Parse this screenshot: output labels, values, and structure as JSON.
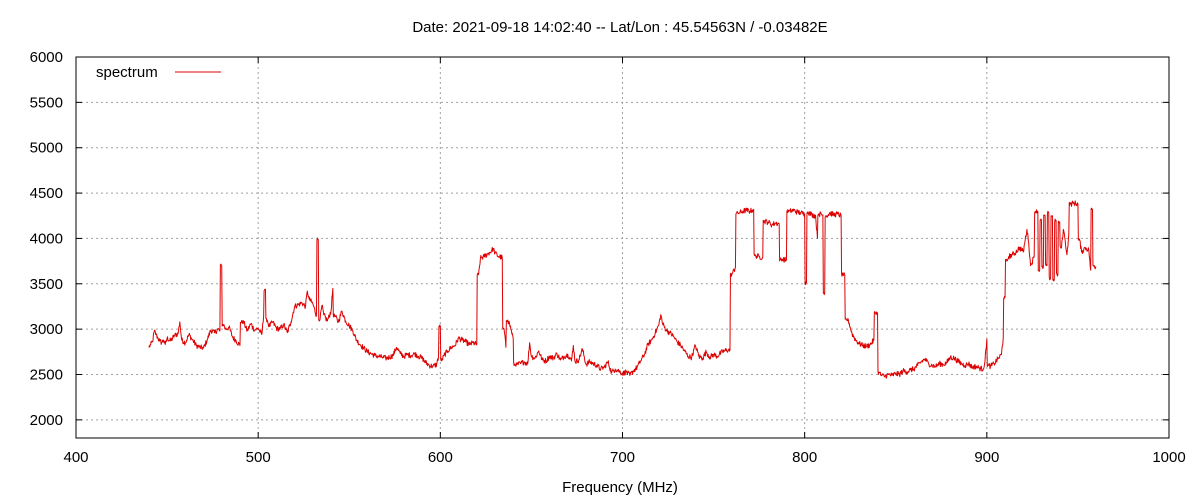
{
  "chart_data": {
    "type": "line",
    "title": "Date: 2021-09-18 14:02:40  --  Lat/Lon : 45.54563N / -0.03482E",
    "xlabel": "Frequency (MHz)",
    "ylabel": "",
    "xlim": [
      400,
      1000
    ],
    "ylim": [
      1800,
      6000
    ],
    "xticks": [
      400,
      500,
      600,
      700,
      800,
      900,
      1000
    ],
    "yticks": [
      2000,
      2500,
      3000,
      3500,
      4000,
      4500,
      5000,
      5500,
      6000
    ],
    "grid": true,
    "legend_position": "top-left",
    "colors": {
      "spectrum": "#dd0000"
    },
    "series": [
      {
        "name": "spectrum",
        "points": [
          [
            440,
            2800
          ],
          [
            441,
            2830
          ],
          [
            442,
            2860
          ],
          [
            443,
            2980
          ],
          [
            444,
            2940
          ],
          [
            445,
            2900
          ],
          [
            446,
            2870
          ],
          [
            447,
            2850
          ],
          [
            448,
            2880
          ],
          [
            449,
            2830
          ],
          [
            450,
            2900
          ],
          [
            452,
            2870
          ],
          [
            454,
            2930
          ],
          [
            456,
            2950
          ],
          [
            457,
            3080
          ],
          [
            458,
            2880
          ],
          [
            460,
            2850
          ],
          [
            462,
            2940
          ],
          [
            464,
            2880
          ],
          [
            466,
            2820
          ],
          [
            468,
            2800
          ],
          [
            470,
            2790
          ],
          [
            472,
            2880
          ],
          [
            474,
            2990
          ],
          [
            476,
            2960
          ],
          [
            478,
            3000
          ],
          [
            479,
            2980
          ],
          [
            480,
            3700
          ],
          [
            481,
            3050
          ],
          [
            482,
            3000
          ],
          [
            484,
            3020
          ],
          [
            486,
            2910
          ],
          [
            488,
            2870
          ],
          [
            490,
            2820
          ],
          [
            492,
            3080
          ],
          [
            494,
            2980
          ],
          [
            496,
            3060
          ],
          [
            498,
            2990
          ],
          [
            500,
            3010
          ],
          [
            502,
            2940
          ],
          [
            503,
            3140
          ],
          [
            504,
            3440
          ],
          [
            505,
            3100
          ],
          [
            506,
            3030
          ],
          [
            508,
            3080
          ],
          [
            510,
            3010
          ],
          [
            512,
            3000
          ],
          [
            514,
            3050
          ],
          [
            516,
            2960
          ],
          [
            518,
            3080
          ],
          [
            520,
            3250
          ],
          [
            522,
            3270
          ],
          [
            524,
            3290
          ],
          [
            526,
            3250
          ],
          [
            527,
            3420
          ],
          [
            528,
            3330
          ],
          [
            530,
            3280
          ],
          [
            532,
            3150
          ],
          [
            533,
            3990
          ],
          [
            534,
            3110
          ],
          [
            535,
            3260
          ],
          [
            536,
            3160
          ],
          [
            538,
            3090
          ],
          [
            540,
            3200
          ],
          [
            541,
            3450
          ],
          [
            542,
            3150
          ],
          [
            544,
            3080
          ],
          [
            546,
            3200
          ],
          [
            548,
            3090
          ],
          [
            550,
            3040
          ],
          [
            552,
            2980
          ],
          [
            554,
            2880
          ],
          [
            556,
            2830
          ],
          [
            558,
            2790
          ],
          [
            560,
            2750
          ],
          [
            562,
            2730
          ],
          [
            564,
            2710
          ],
          [
            566,
            2700
          ],
          [
            568,
            2690
          ],
          [
            570,
            2680
          ],
          [
            572,
            2690
          ],
          [
            574,
            2710
          ],
          [
            576,
            2800
          ],
          [
            578,
            2730
          ],
          [
            580,
            2700
          ],
          [
            582,
            2720
          ],
          [
            584,
            2710
          ],
          [
            586,
            2730
          ],
          [
            588,
            2700
          ],
          [
            590,
            2680
          ],
          [
            592,
            2630
          ],
          [
            594,
            2600
          ],
          [
            596,
            2590
          ],
          [
            598,
            2610
          ],
          [
            599,
            2700
          ],
          [
            600,
            3030
          ],
          [
            601,
            2660
          ],
          [
            602,
            2710
          ],
          [
            604,
            2760
          ],
          [
            606,
            2800
          ],
          [
            608,
            2820
          ],
          [
            610,
            2900
          ],
          [
            612,
            2880
          ],
          [
            614,
            2860
          ],
          [
            616,
            2830
          ],
          [
            618,
            2850
          ],
          [
            620,
            2830
          ],
          [
            621,
            3600
          ],
          [
            622,
            3780
          ],
          [
            624,
            3800
          ],
          [
            626,
            3830
          ],
          [
            628,
            3860
          ],
          [
            629,
            3890
          ],
          [
            630,
            3840
          ],
          [
            632,
            3800
          ],
          [
            634,
            3790
          ],
          [
            635,
            3000
          ],
          [
            636,
            2800
          ],
          [
            637,
            3100
          ],
          [
            638,
            3060
          ],
          [
            640,
            2900
          ],
          [
            642,
            2610
          ],
          [
            644,
            2620
          ],
          [
            646,
            2640
          ],
          [
            648,
            2620
          ],
          [
            649,
            2850
          ],
          [
            650,
            2700
          ],
          [
            652,
            2680
          ],
          [
            654,
            2760
          ],
          [
            656,
            2660
          ],
          [
            658,
            2650
          ],
          [
            660,
            2700
          ],
          [
            662,
            2680
          ],
          [
            664,
            2730
          ],
          [
            666,
            2660
          ],
          [
            668,
            2700
          ],
          [
            670,
            2720
          ],
          [
            672,
            2650
          ],
          [
            673,
            2820
          ],
          [
            674,
            2640
          ],
          [
            676,
            2660
          ],
          [
            678,
            2780
          ],
          [
            680,
            2610
          ],
          [
            682,
            2640
          ],
          [
            684,
            2620
          ],
          [
            686,
            2600
          ],
          [
            688,
            2560
          ],
          [
            690,
            2580
          ],
          [
            692,
            2640
          ],
          [
            694,
            2520
          ],
          [
            696,
            2560
          ],
          [
            698,
            2540
          ],
          [
            700,
            2510
          ],
          [
            702,
            2530
          ],
          [
            704,
            2490
          ],
          [
            706,
            2540
          ],
          [
            708,
            2580
          ],
          [
            710,
            2650
          ],
          [
            712,
            2720
          ],
          [
            714,
            2830
          ],
          [
            716,
            2880
          ],
          [
            718,
            2960
          ],
          [
            720,
            3050
          ],
          [
            721,
            3160
          ],
          [
            722,
            3060
          ],
          [
            724,
            2990
          ],
          [
            726,
            2960
          ],
          [
            728,
            2920
          ],
          [
            730,
            2860
          ],
          [
            732,
            2820
          ],
          [
            734,
            2760
          ],
          [
            736,
            2700
          ],
          [
            738,
            2690
          ],
          [
            740,
            2820
          ],
          [
            742,
            2700
          ],
          [
            744,
            2680
          ],
          [
            746,
            2750
          ],
          [
            748,
            2690
          ],
          [
            750,
            2720
          ],
          [
            752,
            2700
          ],
          [
            754,
            2740
          ],
          [
            756,
            2760
          ],
          [
            758,
            2770
          ],
          [
            759,
            2770
          ],
          [
            760,
            3600
          ],
          [
            762,
            3680
          ],
          [
            764,
            4280
          ],
          [
            766,
            4300
          ],
          [
            768,
            4310
          ],
          [
            770,
            4300
          ],
          [
            772,
            4320
          ],
          [
            773,
            3810
          ],
          [
            775,
            3800
          ],
          [
            777,
            3790
          ],
          [
            778,
            4190
          ],
          [
            780,
            4180
          ],
          [
            782,
            4150
          ],
          [
            784,
            4170
          ],
          [
            786,
            4160
          ],
          [
            788,
            3770
          ],
          [
            790,
            3760
          ],
          [
            792,
            4300
          ],
          [
            794,
            4310
          ],
          [
            796,
            4290
          ],
          [
            798,
            4280
          ],
          [
            800,
            4270
          ],
          [
            801,
            3510
          ],
          [
            802,
            4290
          ],
          [
            804,
            4260
          ],
          [
            806,
            4250
          ],
          [
            807,
            4000
          ],
          [
            808,
            4270
          ],
          [
            810,
            4260
          ],
          [
            811,
            3400
          ],
          [
            812,
            4250
          ],
          [
            814,
            4280
          ],
          [
            816,
            4260
          ],
          [
            818,
            4270
          ],
          [
            820,
            4250
          ],
          [
            822,
            3600
          ],
          [
            824,
            3100
          ],
          [
            826,
            2950
          ],
          [
            828,
            2880
          ],
          [
            830,
            2840
          ],
          [
            832,
            2820
          ],
          [
            834,
            2810
          ],
          [
            836,
            2830
          ],
          [
            838,
            2880
          ],
          [
            840,
            3180
          ],
          [
            841,
            2520
          ],
          [
            842,
            2490
          ],
          [
            844,
            2480
          ],
          [
            846,
            2500
          ],
          [
            848,
            2490
          ],
          [
            850,
            2510
          ],
          [
            852,
            2500
          ],
          [
            854,
            2540
          ],
          [
            856,
            2530
          ],
          [
            858,
            2550
          ],
          [
            860,
            2560
          ],
          [
            862,
            2600
          ],
          [
            864,
            2640
          ],
          [
            866,
            2670
          ],
          [
            868,
            2620
          ],
          [
            870,
            2600
          ],
          [
            872,
            2590
          ],
          [
            874,
            2620
          ],
          [
            876,
            2610
          ],
          [
            878,
            2630
          ],
          [
            880,
            2690
          ],
          [
            882,
            2680
          ],
          [
            884,
            2650
          ],
          [
            886,
            2620
          ],
          [
            888,
            2600
          ],
          [
            890,
            2620
          ],
          [
            892,
            2580
          ],
          [
            894,
            2590
          ],
          [
            896,
            2570
          ],
          [
            898,
            2560
          ],
          [
            899,
            2650
          ],
          [
            900,
            2890
          ],
          [
            901,
            2600
          ],
          [
            902,
            2590
          ],
          [
            904,
            2620
          ],
          [
            906,
            2670
          ],
          [
            908,
            2720
          ],
          [
            909,
            2900
          ],
          [
            910,
            3350
          ],
          [
            911,
            3750
          ],
          [
            912,
            3800
          ],
          [
            914,
            3820
          ],
          [
            916,
            3850
          ],
          [
            918,
            3900
          ],
          [
            920,
            3850
          ],
          [
            922,
            4100
          ],
          [
            923,
            3950
          ],
          [
            924,
            3700
          ],
          [
            926,
            3800
          ],
          [
            928,
            4300
          ],
          [
            929,
            3650
          ],
          [
            930,
            4200
          ],
          [
            931,
            3680
          ],
          [
            932,
            4250
          ],
          [
            933,
            3700
          ],
          [
            934,
            4280
          ],
          [
            935,
            3560
          ],
          [
            936,
            4250
          ],
          [
            937,
            3540
          ],
          [
            938,
            4200
          ],
          [
            939,
            3600
          ],
          [
            940,
            4180
          ],
          [
            941,
            3900
          ],
          [
            942,
            4100
          ],
          [
            943,
            3980
          ],
          [
            944,
            3820
          ],
          [
            945,
            4050
          ],
          [
            946,
            4380
          ],
          [
            948,
            4390
          ],
          [
            950,
            4380
          ],
          [
            951,
            3980
          ],
          [
            952,
            3850
          ],
          [
            954,
            3900
          ],
          [
            956,
            3870
          ],
          [
            957,
            3650
          ],
          [
            958,
            4320
          ],
          [
            959,
            3700
          ],
          [
            960,
            3680
          ]
        ]
      }
    ]
  }
}
